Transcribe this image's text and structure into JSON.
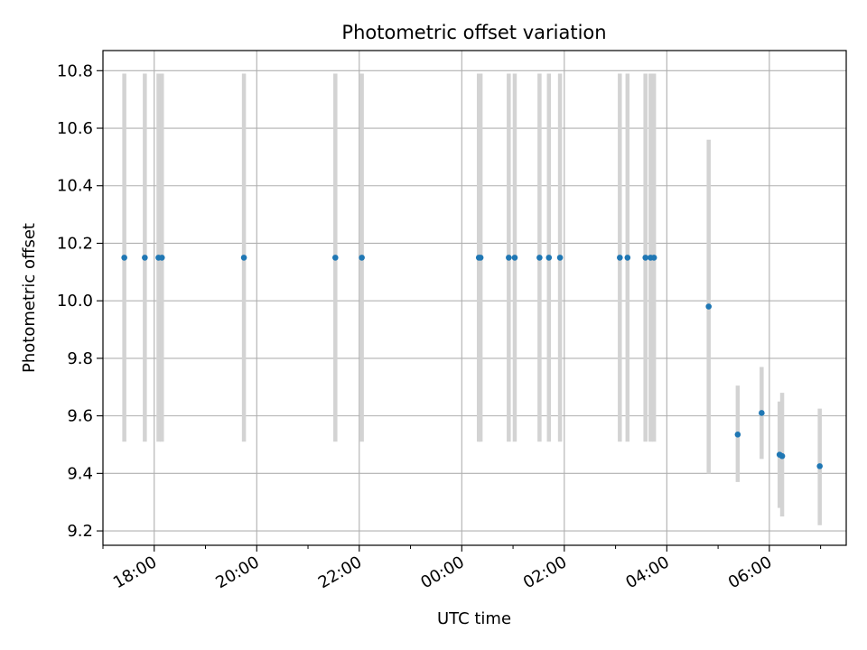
{
  "chart_data": {
    "type": "scatter",
    "title": "Photometric offset variation",
    "xlabel": "UTC time",
    "ylabel": "Photometric offset",
    "x_tick_labels": [
      "18:00",
      "20:00",
      "22:00",
      "00:00",
      "02:00",
      "04:00",
      "06:00"
    ],
    "y_tick_labels": [
      "9.2",
      "9.4",
      "9.6",
      "9.8",
      "10.0",
      "10.2",
      "10.4",
      "10.6",
      "10.8"
    ],
    "x_ticks": [
      "17:00",
      "18:00",
      "19:00",
      "20:00",
      "21:00",
      "22:00",
      "23:00",
      "00:00",
      "01:00",
      "02:00",
      "03:00",
      "04:00",
      "05:00",
      "06:00",
      "07:00"
    ],
    "xlim": [
      "17:00",
      "07:30"
    ],
    "ylim": [
      9.15,
      10.87
    ],
    "grid": true,
    "series": [
      {
        "points": [
          {
            "x": "17:25",
            "y": 10.15,
            "ylow": 9.51,
            "yhigh": 10.79
          },
          {
            "x": "17:49",
            "y": 10.15,
            "ylow": 9.51,
            "yhigh": 10.79
          },
          {
            "x": "18:05",
            "y": 10.15,
            "ylow": 9.51,
            "yhigh": 10.79
          },
          {
            "x": "18:09",
            "y": 10.15,
            "ylow": 9.51,
            "yhigh": 10.79
          },
          {
            "x": "19:45",
            "y": 10.15,
            "ylow": 9.51,
            "yhigh": 10.79
          },
          {
            "x": "21:32",
            "y": 10.15,
            "ylow": 9.51,
            "yhigh": 10.79
          },
          {
            "x": "22:03",
            "y": 10.15,
            "ylow": 9.51,
            "yhigh": 10.79
          },
          {
            "x": "00:20",
            "y": 10.15,
            "ylow": 9.51,
            "yhigh": 10.79
          },
          {
            "x": "00:22",
            "y": 10.15,
            "ylow": 9.51,
            "yhigh": 10.79
          },
          {
            "x": "00:55",
            "y": 10.15,
            "ylow": 9.51,
            "yhigh": 10.79
          },
          {
            "x": "01:02",
            "y": 10.15,
            "ylow": 9.51,
            "yhigh": 10.79
          },
          {
            "x": "01:31",
            "y": 10.15,
            "ylow": 9.51,
            "yhigh": 10.79
          },
          {
            "x": "01:42",
            "y": 10.15,
            "ylow": 9.51,
            "yhigh": 10.79
          },
          {
            "x": "01:55",
            "y": 10.15,
            "ylow": 9.51,
            "yhigh": 10.79
          },
          {
            "x": "03:05",
            "y": 10.15,
            "ylow": 9.51,
            "yhigh": 10.79
          },
          {
            "x": "03:14",
            "y": 10.15,
            "ylow": 9.51,
            "yhigh": 10.79
          },
          {
            "x": "03:35",
            "y": 10.15,
            "ylow": 9.51,
            "yhigh": 10.79
          },
          {
            "x": "03:41",
            "y": 10.15,
            "ylow": 9.51,
            "yhigh": 10.79
          },
          {
            "x": "03:45",
            "y": 10.15,
            "ylow": 9.51,
            "yhigh": 10.79
          },
          {
            "x": "04:49",
            "y": 9.98,
            "ylow": 9.4,
            "yhigh": 10.56
          },
          {
            "x": "05:23",
            "y": 9.535,
            "ylow": 9.37,
            "yhigh": 9.705
          },
          {
            "x": "05:51",
            "y": 9.61,
            "ylow": 9.45,
            "yhigh": 9.77
          },
          {
            "x": "06:12",
            "y": 9.465,
            "ylow": 9.28,
            "yhigh": 9.65
          },
          {
            "x": "06:15",
            "y": 9.46,
            "ylow": 9.25,
            "yhigh": 9.68
          },
          {
            "x": "06:59",
            "y": 9.425,
            "ylow": 9.22,
            "yhigh": 9.625
          }
        ]
      }
    ],
    "colors": {
      "point": "#1f77b4",
      "errorbar": "#d3d3d3",
      "grid": "#b0b0b0",
      "axis": "#000000"
    }
  }
}
